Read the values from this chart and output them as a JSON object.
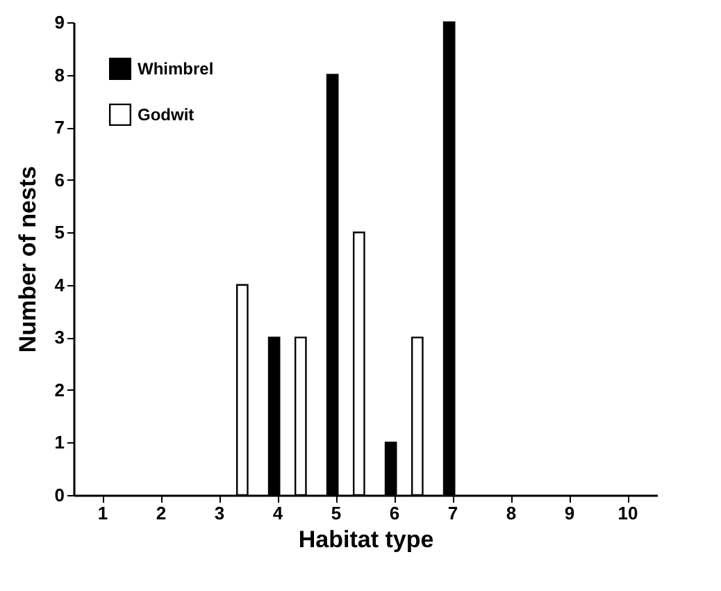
{
  "chart_data": {
    "type": "bar",
    "xlabel": "Habitat type",
    "ylabel": "Number of nests",
    "categories": [
      "1",
      "2",
      "3",
      "4",
      "5",
      "6",
      "7",
      "8",
      "9",
      "10"
    ],
    "series": [
      {
        "name": "Whimbrel",
        "color": "#000000",
        "values": [
          0,
          0,
          0,
          3,
          8,
          1,
          9,
          0,
          0,
          0
        ]
      },
      {
        "name": "Godwit",
        "color": "#ffffff",
        "values": [
          0,
          0,
          4,
          3,
          5,
          3,
          0,
          0,
          0,
          0
        ]
      }
    ],
    "ylim": [
      0,
      9
    ],
    "yticks": [
      0,
      1,
      2,
      3,
      4,
      5,
      6,
      7,
      8,
      9
    ],
    "grid": false,
    "legend": "top left"
  }
}
